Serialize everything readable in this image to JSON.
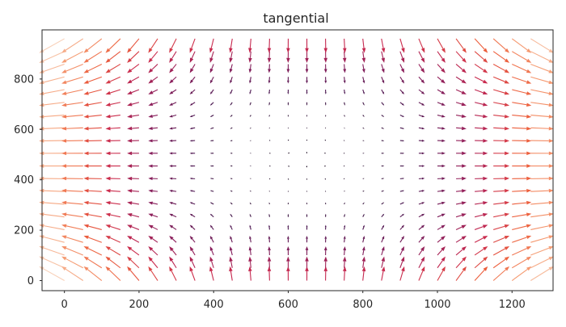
{
  "chart_data": {
    "type": "quiver",
    "title": "tangential",
    "xlabel": "",
    "ylabel": "",
    "xlim": [
      -60,
      1310
    ],
    "ylim": [
      -40,
      995
    ],
    "xticks": [
      0,
      200,
      400,
      600,
      800,
      1000,
      1200
    ],
    "yticks": [
      0,
      200,
      400,
      600,
      800
    ],
    "xtick_labels": [
      "0",
      "200",
      "400",
      "600",
      "800",
      "1000",
      "1200"
    ],
    "ytick_labels": [
      "0",
      "200",
      "400",
      "600",
      "800"
    ],
    "grid": false,
    "colormap": "rocket",
    "color_encodes": "magnitude",
    "field": {
      "center": [
        640,
        480
      ],
      "x_range": [
        0,
        1250
      ],
      "y_range": [
        0,
        960
      ],
      "x_count": 26,
      "y_count": 20,
      "direction": "tangential, pointing away from the center"
    },
    "colors": {
      "axes_edge": "#262626",
      "colormap_stops": [
        "#1a0a20",
        "#4a1650",
        "#8a1f5c",
        "#c8284e",
        "#ec5e3c",
        "#f59b72",
        "#f8d0b8"
      ]
    }
  }
}
